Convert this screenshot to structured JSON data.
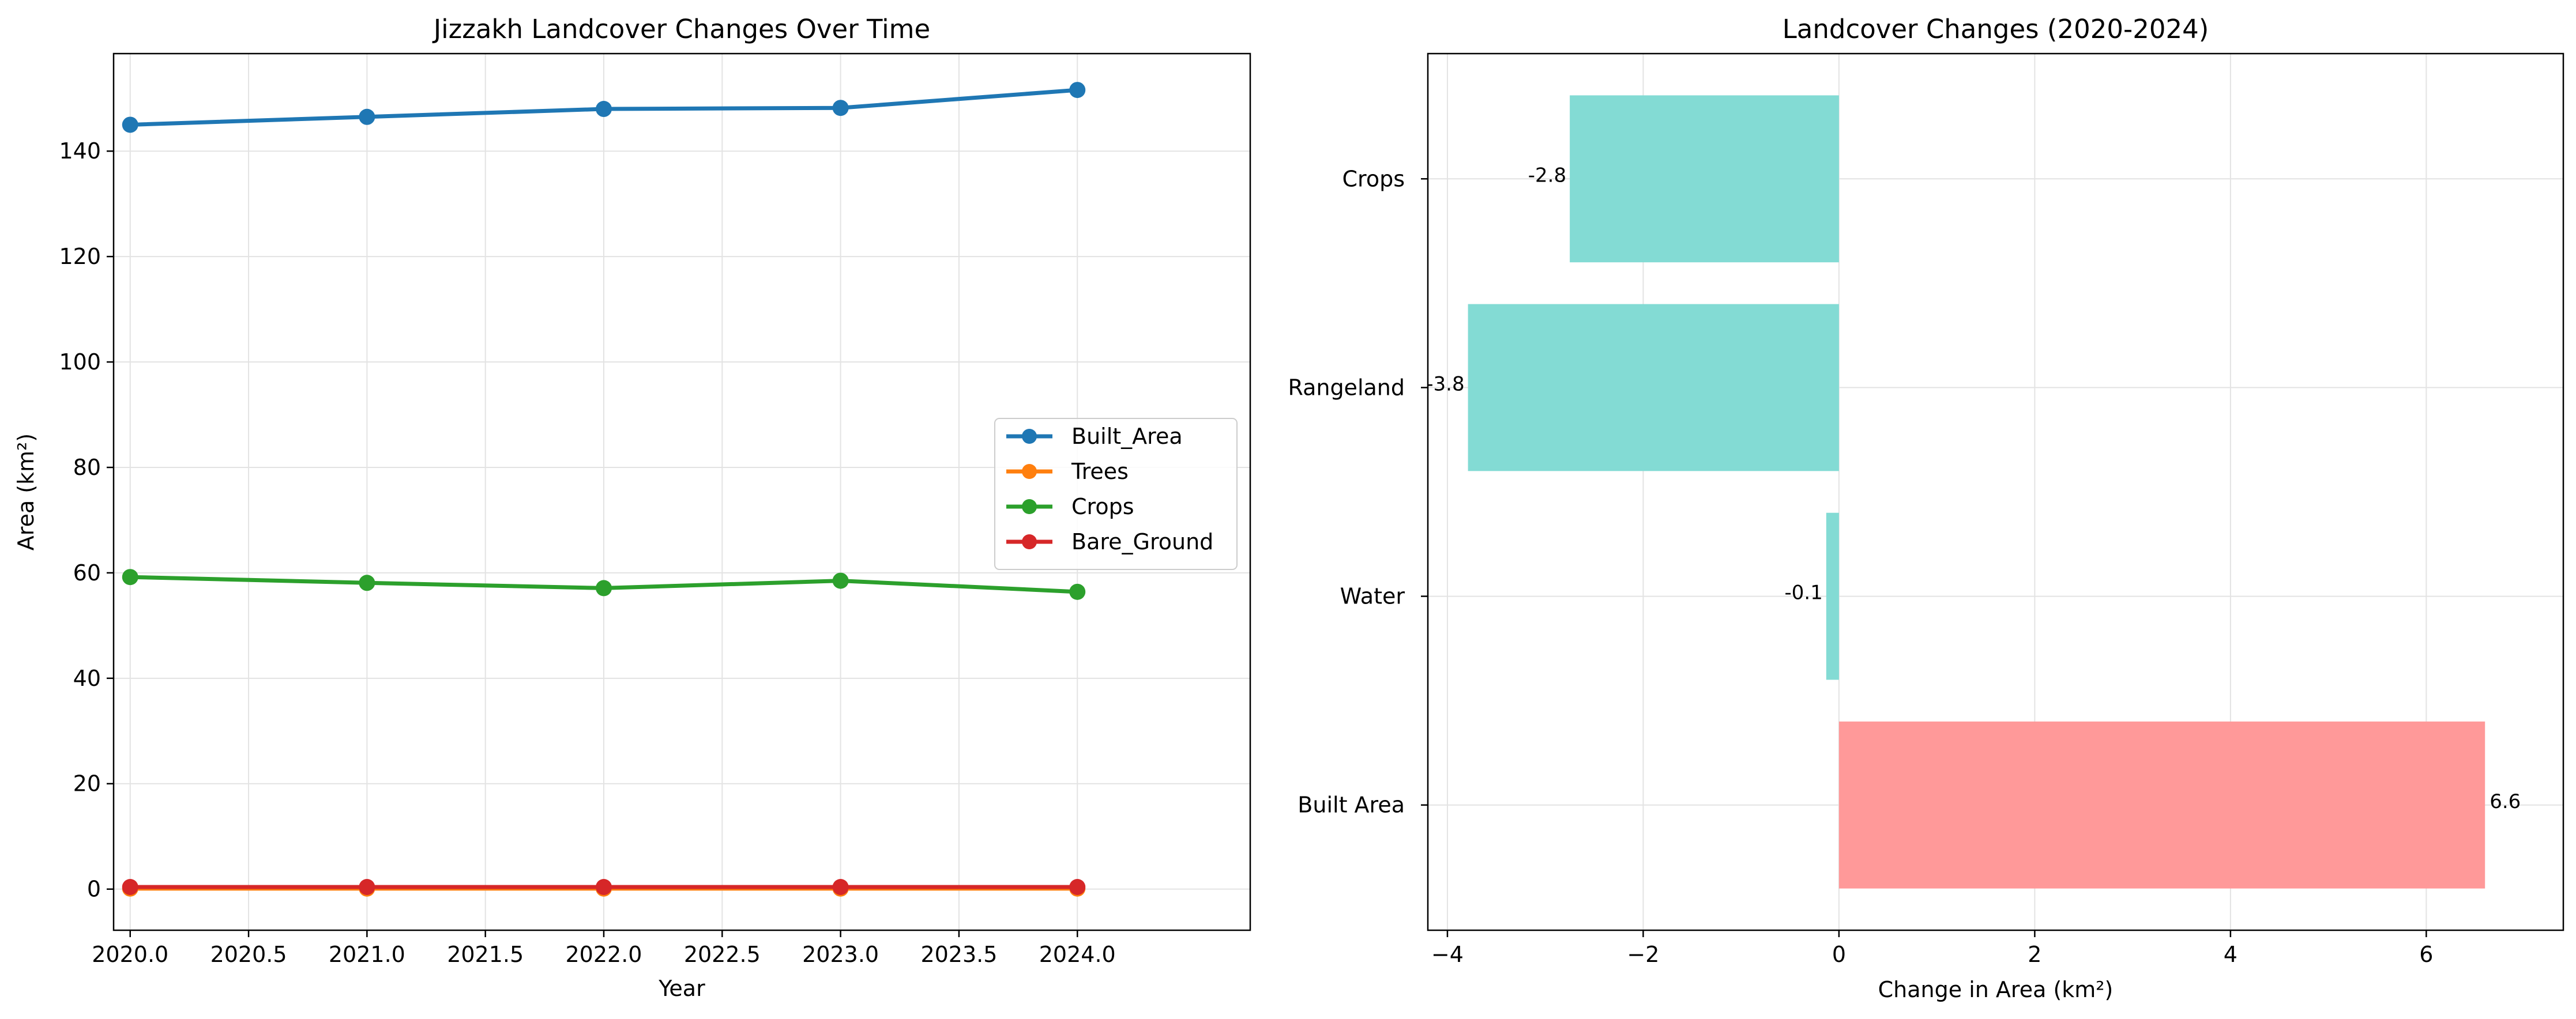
{
  "chart_data": [
    {
      "type": "line",
      "title": "Jizzakh Landcover Changes Over Time",
      "xlabel": "Year",
      "ylabel": "Area (km²)",
      "x": [
        2020,
        2021,
        2022,
        2023,
        2024
      ],
      "xlim": [
        2019.93,
        2024.73
      ],
      "ylim": [
        -7.8,
        158.5
      ],
      "xticks": [
        2020.0,
        2020.5,
        2021.0,
        2021.5,
        2022.0,
        2022.5,
        2023.0,
        2023.5,
        2024.0
      ],
      "xtick_labels": [
        "2020.0",
        "2020.5",
        "2021.0",
        "2021.5",
        "2022.0",
        "2022.5",
        "2023.0",
        "2023.5",
        "2024.0"
      ],
      "yticks": [
        0,
        20,
        40,
        60,
        80,
        100,
        120,
        140
      ],
      "ytick_labels": [
        "0",
        "20",
        "40",
        "60",
        "80",
        "100",
        "120",
        "140"
      ],
      "grid": true,
      "legend_position": "center-right",
      "series": [
        {
          "name": "Built_Area",
          "color": "#1f77b4",
          "values": [
            145.0,
            146.5,
            148.0,
            148.2,
            151.6
          ]
        },
        {
          "name": "Trees",
          "color": "#ff7f0e",
          "values": [
            0.1,
            0.1,
            0.1,
            0.1,
            0.1
          ]
        },
        {
          "name": "Crops",
          "color": "#2ca02c",
          "values": [
            59.2,
            58.1,
            57.1,
            58.5,
            56.4
          ]
        },
        {
          "name": "Bare_Ground",
          "color": "#d62728",
          "values": [
            0.4,
            0.4,
            0.4,
            0.4,
            0.4
          ]
        }
      ]
    },
    {
      "type": "bar",
      "orientation": "horizontal",
      "title": "Landcover Changes (2020-2024)",
      "xlabel": "Change in Area (km²)",
      "ylabel": "",
      "categories": [
        "Built Area",
        "Water",
        "Rangeland",
        "Crops"
      ],
      "values": [
        6.6,
        -0.13,
        -3.79,
        -2.75
      ],
      "value_labels": [
        "6.6",
        "-0.1",
        "-3.8",
        "-2.8"
      ],
      "xlim": [
        -4.2,
        7.4
      ],
      "xticks": [
        -4,
        -2,
        0,
        2,
        4,
        6
      ],
      "xtick_labels": [
        "−4",
        "−2",
        "0",
        "2",
        "4",
        "6"
      ],
      "grid": true,
      "positive_color": "#ff9999",
      "negative_color": "#83dbd4"
    }
  ]
}
